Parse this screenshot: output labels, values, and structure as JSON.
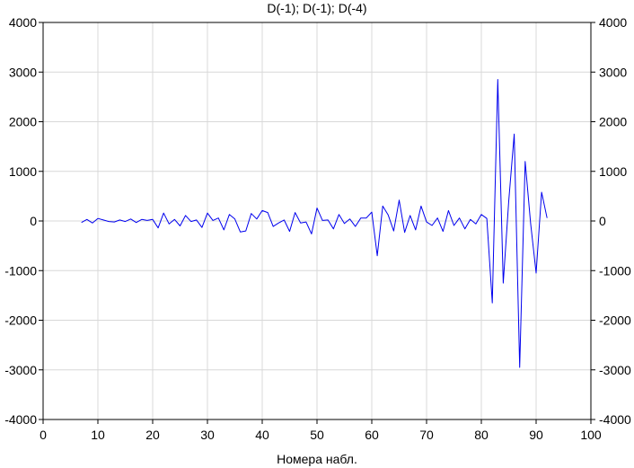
{
  "chart_data": {
    "type": "line",
    "title": "D(-1); D(-1); D(-4)",
    "xlabel": "Номера набл.",
    "ylabel": "",
    "xlim": [
      0,
      100
    ],
    "ylim": [
      -4000,
      4000
    ],
    "x_ticks": [
      0,
      10,
      20,
      30,
      40,
      50,
      60,
      70,
      80,
      90,
      100
    ],
    "y_ticks": [
      -4000,
      -3000,
      -2000,
      -1000,
      0,
      1000,
      2000,
      3000,
      4000
    ],
    "y_axis_right_mirror": true,
    "grid": true,
    "series_color": "#0000ee",
    "series": [
      {
        "x": [
          7,
          8,
          9,
          10,
          11,
          12,
          13,
          14,
          15,
          16,
          17,
          18,
          19,
          20,
          21,
          22,
          23,
          24,
          25,
          26,
          27,
          28,
          29,
          30,
          31,
          32,
          33,
          34,
          35,
          36,
          37,
          38,
          39,
          40,
          41,
          42,
          43,
          44,
          45,
          46,
          47,
          48,
          49,
          50,
          51,
          52,
          53,
          54,
          55,
          56,
          57,
          58,
          59,
          60,
          61,
          62,
          63,
          64,
          65,
          66,
          67,
          68,
          69,
          70,
          71,
          72,
          73,
          74,
          75,
          76,
          77,
          78,
          79,
          80,
          81,
          82,
          83,
          84,
          85,
          86,
          87,
          88,
          89,
          90,
          91,
          92
        ],
        "values": [
          -30,
          30,
          -40,
          50,
          20,
          -10,
          -20,
          20,
          -10,
          40,
          -30,
          30,
          10,
          30,
          -140,
          160,
          -60,
          30,
          -100,
          110,
          -10,
          20,
          -130,
          160,
          10,
          60,
          -180,
          130,
          40,
          -220,
          -200,
          150,
          40,
          210,
          170,
          -110,
          -40,
          20,
          -210,
          170,
          -40,
          -20,
          -260,
          260,
          10,
          20,
          -160,
          130,
          -50,
          40,
          -110,
          60,
          60,
          180,
          -700,
          300,
          120,
          -200,
          420,
          -230,
          110,
          -180,
          300,
          -20,
          -90,
          60,
          -210,
          210,
          -90,
          60,
          -160,
          30,
          -60,
          130,
          50,
          -1650,
          2850,
          -1250,
          400,
          1750,
          -2950,
          1200,
          -50,
          -1050,
          580,
          60
        ]
      }
    ]
  }
}
